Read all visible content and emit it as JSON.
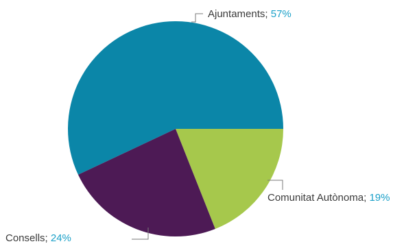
{
  "chart_data": {
    "type": "pie",
    "title": "",
    "slices": [
      {
        "label": "Ajuntaments",
        "value": 57,
        "value_text": "57%",
        "color": "#0b86a8"
      },
      {
        "label": "Comunitat Autònoma",
        "value": 19,
        "value_text": "19%",
        "color": "#a6c84c"
      },
      {
        "label": "Consells",
        "value": 24,
        "value_text": "24%",
        "color": "#4d1a55"
      }
    ],
    "label_separator": "; ",
    "percent_color": "#1aa0c8",
    "start_angle": "3 o'clock",
    "direction": "counter-clockwise for first slice"
  }
}
